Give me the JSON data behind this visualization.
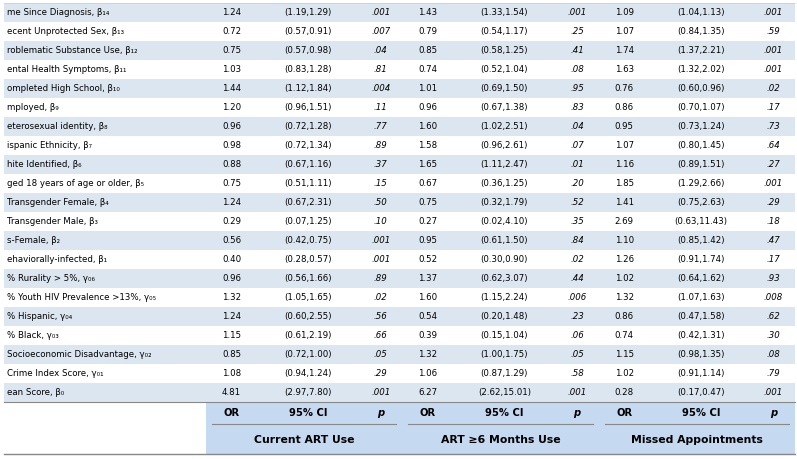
{
  "col_headers": [
    "OR",
    "95% CI",
    "p",
    "OR",
    "95% CI",
    "p",
    "OR",
    "95% CI",
    "p"
  ],
  "row_labels": [
    "ean Score, β₀",
    "Crime Index Score, γ₀₁",
    "Socioeconomic Disadvantage, γ₀₂",
    "% Black, γ₀₃",
    "% Hispanic, γ₀₄",
    "% Youth HIV Prevalence >13%, γ₀₅",
    "% Rurality > 5%, γ₀₆",
    "ehaviorally-infected, β₁",
    "s-Female, β₂",
    "Transgender Male, β₃",
    "Transgender Female, β₄",
    "ged 18 years of age or older, β₅",
    "hite Identified, β₆",
    "ispanic Ethnicity, β₇",
    "eterosexual identity, β₈",
    "mployed, β₉",
    "ompleted High School, β₁₀",
    "ental Health Symptoms, β₁₁",
    "roblematic Substance Use, β₁₂",
    "ecent Unprotected Sex, β₁₃",
    "me Since Diagnosis, β₁₄"
  ],
  "data": [
    [
      "4.81",
      "(2.97,7.80)",
      ".001",
      "6.27",
      "(2.62,15.01)",
      ".001",
      "0.28",
      "(0.17,0.47)",
      ".001"
    ],
    [
      "1.08",
      "(0.94,1.24)",
      ".29",
      "1.06",
      "(0.87,1.29)",
      ".58",
      "1.02",
      "(0.91,1.14)",
      ".79"
    ],
    [
      "0.85",
      "(0.72,1.00)",
      ".05",
      "1.32",
      "(1.00,1.75)",
      ".05",
      "1.15",
      "(0.98,1.35)",
      ".08"
    ],
    [
      "1.15",
      "(0.61,2.19)",
      ".66",
      "0.39",
      "(0.15,1.04)",
      ".06",
      "0.74",
      "(0.42,1.31)",
      ".30"
    ],
    [
      "1.24",
      "(0.60,2.55)",
      ".56",
      "0.54",
      "(0.20,1.48)",
      ".23",
      "0.86",
      "(0.47,1.58)",
      ".62"
    ],
    [
      "1.32",
      "(1.05,1.65)",
      ".02",
      "1.60",
      "(1.15,2.24)",
      ".006",
      "1.32",
      "(1.07,1.63)",
      ".008"
    ],
    [
      "0.96",
      "(0.56,1.66)",
      ".89",
      "1.37",
      "(0.62,3.07)",
      ".44",
      "1.02",
      "(0.64,1.62)",
      ".93"
    ],
    [
      "0.40",
      "(0.28,0.57)",
      ".001",
      "0.52",
      "(0.30,0.90)",
      ".02",
      "1.26",
      "(0.91,1.74)",
      ".17"
    ],
    [
      "0.56",
      "(0.42,0.75)",
      ".001",
      "0.95",
      "(0.61,1.50)",
      ".84",
      "1.10",
      "(0.85,1.42)",
      ".47"
    ],
    [
      "0.29",
      "(0.07,1.25)",
      ".10",
      "0.27",
      "(0.02,4.10)",
      ".35",
      "2.69",
      "(0.63,11.43)",
      ".18"
    ],
    [
      "1.24",
      "(0.67,2.31)",
      ".50",
      "0.75",
      "(0.32,1.79)",
      ".52",
      "1.41",
      "(0.75,2.63)",
      ".29"
    ],
    [
      "0.75",
      "(0.51,1.11)",
      ".15",
      "0.67",
      "(0.36,1.25)",
      ".20",
      "1.85",
      "(1.29,2.66)",
      ".001"
    ],
    [
      "0.88",
      "(0.67,1.16)",
      ".37",
      "1.65",
      "(1.11,2.47)",
      ".01",
      "1.16",
      "(0.89,1.51)",
      ".27"
    ],
    [
      "0.98",
      "(0.72,1.34)",
      ".89",
      "1.58",
      "(0.96,2.61)",
      ".07",
      "1.07",
      "(0.80,1.45)",
      ".64"
    ],
    [
      "0.96",
      "(0.72,1.28)",
      ".77",
      "1.60",
      "(1.02,2.51)",
      ".04",
      "0.95",
      "(0.73,1.24)",
      ".73"
    ],
    [
      "1.20",
      "(0.96,1.51)",
      ".11",
      "0.96",
      "(0.67,1.38)",
      ".83",
      "0.86",
      "(0.70,1.07)",
      ".17"
    ],
    [
      "1.44",
      "(1.12,1.84)",
      ".004",
      "1.01",
      "(0.69,1.50)",
      ".95",
      "0.76",
      "(0.60,0.96)",
      ".02"
    ],
    [
      "1.03",
      "(0.83,1.28)",
      ".81",
      "0.74",
      "(0.52,1.04)",
      ".08",
      "1.63",
      "(1.32,2.02)",
      ".001"
    ],
    [
      "0.75",
      "(0.57,0.98)",
      ".04",
      "0.85",
      "(0.58,1.25)",
      ".41",
      "1.74",
      "(1.37,2.21)",
      ".001"
    ],
    [
      "0.72",
      "(0.57,0.91)",
      ".007",
      "0.79",
      "(0.54,1.17)",
      ".25",
      "1.07",
      "(0.84,1.35)",
      ".59"
    ],
    [
      "1.24",
      "(1.19,1.29)",
      ".001",
      "1.43",
      "(1.33,1.54)",
      ".001",
      "1.09",
      "(1.04,1.13)",
      ".001"
    ]
  ],
  "shaded_rows": [
    0,
    2,
    4,
    6,
    8,
    10,
    12,
    14,
    16,
    18,
    20
  ],
  "bg_color": "#ffffff",
  "shade_color": "#dce6f1",
  "header_shade": "#c5d9f1",
  "text_color": "#000000",
  "font_size": 6.2,
  "header_font_size": 7.2,
  "group_header_font_size": 7.8,
  "groups": [
    {
      "label": "Current ART Use",
      "cols": [
        1,
        2,
        3
      ]
    },
    {
      "label": "ART ≥6 Months Use",
      "cols": [
        4,
        5,
        6
      ]
    },
    {
      "label": "Missed Appointments",
      "cols": [
        7,
        8,
        9
      ]
    }
  ]
}
